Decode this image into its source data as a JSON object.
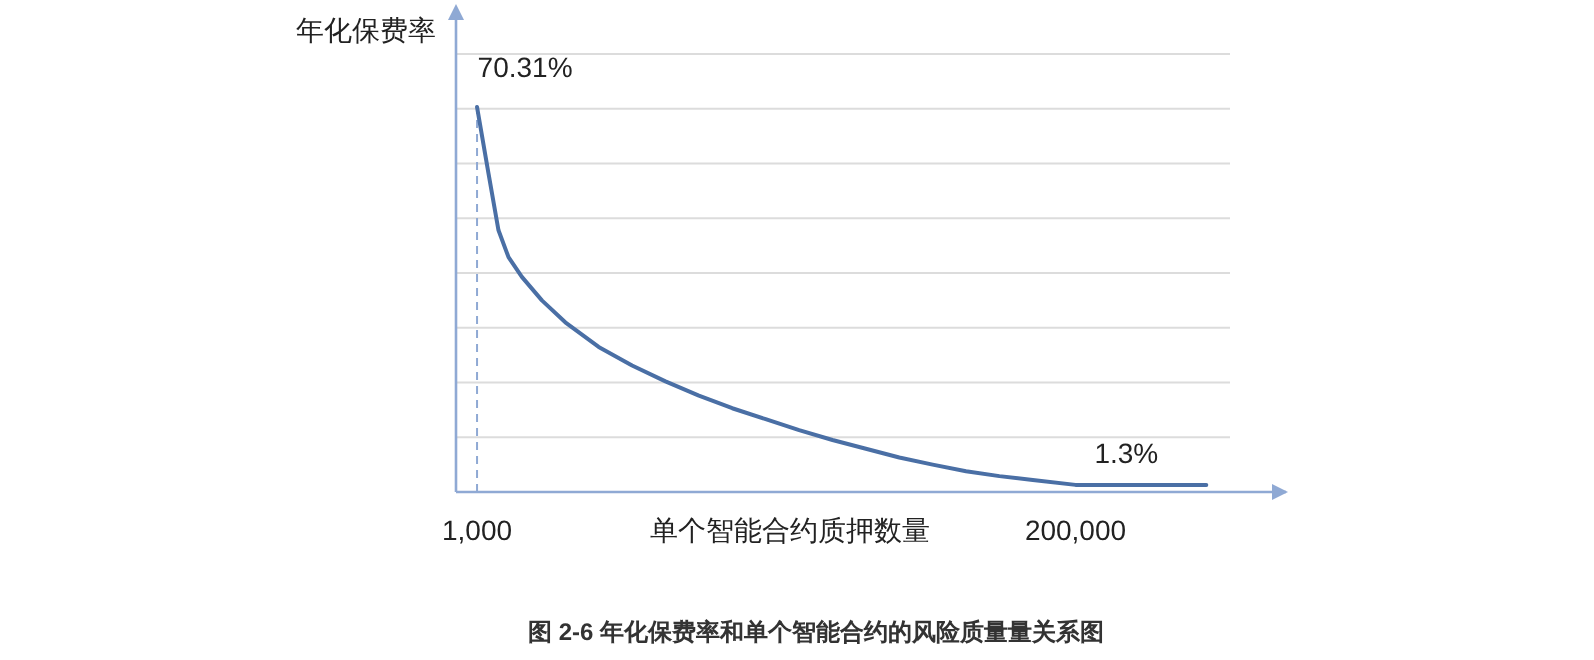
{
  "chart_data": {
    "type": "line",
    "ylabel": "年化保费率",
    "xlabel": "单个智能合约质押数量",
    "annotations": [
      "图 2-6  年化保费率和单个智能合约的风险质量量关系图"
    ],
    "x": [
      1000,
      4800,
      8130,
      11460,
      15900,
      22560,
      30340,
      41440,
      52550,
      63650,
      74760,
      85860,
      96970,
      108100,
      119200,
      130300,
      141400,
      152500,
      163600,
      174700,
      185800,
      200000,
      243500
    ],
    "series": [
      {
        "color": "#4a6fa5",
        "values": [
          70.31,
          58.2,
          47.8,
          42.9,
          39.3,
          35.0,
          31.0,
          26.5,
          23.1,
          20.2,
          17.6,
          15.3,
          13.3,
          11.3,
          9.5,
          7.9,
          6.3,
          5.0,
          3.8,
          2.9,
          2.2,
          1.3,
          1.3
        ],
        "value_labels": [
          "70.31%",
          null,
          null,
          null,
          null,
          null,
          null,
          null,
          null,
          null,
          null,
          null,
          null,
          null,
          null,
          null,
          null,
          null,
          null,
          null,
          null,
          null,
          "1.3%"
        ]
      }
    ],
    "xlim": [
      -6000,
      270000
    ],
    "xticks": [
      {
        "value": 1000,
        "label": "1,000"
      },
      {
        "value": 200000,
        "label": "200,000"
      }
    ],
    "ylim": [
      0,
      80
    ],
    "yticks": [
      {
        "value": 10,
        "label": null
      },
      {
        "value": 20,
        "label": null
      },
      {
        "value": 30,
        "label": null
      },
      {
        "value": 40,
        "label": null
      },
      {
        "value": 50,
        "label": null
      },
      {
        "value": 60,
        "label": null
      },
      {
        "value": 70,
        "label": null
      },
      {
        "value": 80,
        "label": null
      }
    ],
    "tick_labels": "x",
    "grid": "y",
    "marker": "none",
    "line_style": "solid",
    "ref_lines": [
      {
        "axis": "x",
        "value": 1000,
        "color": "#8fa9d4",
        "line_style": "dashed"
      }
    ]
  }
}
